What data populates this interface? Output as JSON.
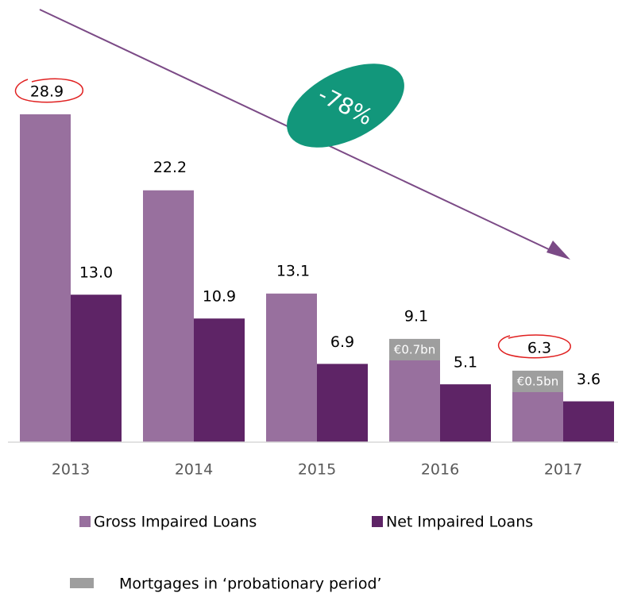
{
  "chart_data": {
    "type": "bar",
    "categories": [
      "2013",
      "2014",
      "2015",
      "2016",
      "2017"
    ],
    "series": [
      {
        "name": "Gross Impaired Loans",
        "color": "#98709e",
        "values": [
          28.9,
          22.2,
          13.1,
          9.1,
          6.3
        ]
      },
      {
        "name": "Net Impaired Loans",
        "color": "#5e2466",
        "values": [
          13.0,
          10.9,
          6.9,
          5.1,
          3.6
        ],
        "value_labels": [
          "13.0",
          "10.9",
          "6.9",
          "5.1",
          "3.6"
        ]
      }
    ],
    "probation": {
      "name": "Mortgages in ‘probationary period’",
      "color": "#9e9e9e",
      "values": [
        null,
        null,
        null,
        0.7,
        0.5
      ],
      "value_labels": [
        null,
        null,
        null,
        "€0.7bn",
        "€0.5bn"
      ]
    },
    "annotation": "-78%",
    "ylim": [
      0,
      30
    ]
  }
}
